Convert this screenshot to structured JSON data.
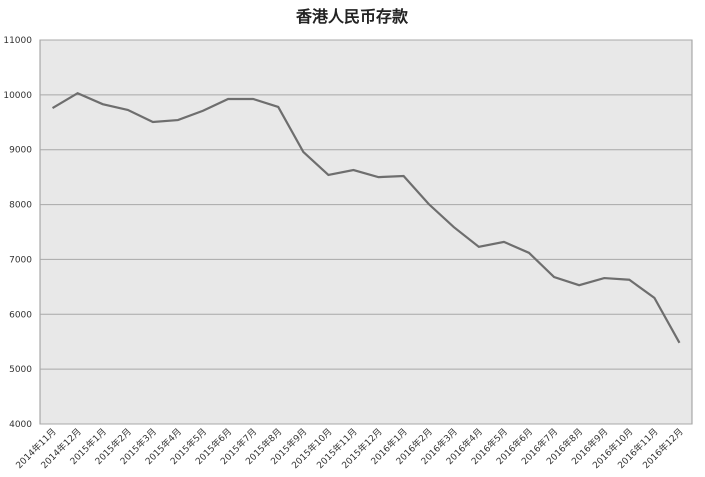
{
  "chart_data": {
    "type": "line",
    "title": "香港人民币存款",
    "categories": [
      "2014年11月",
      "2014年12月",
      "2015年1月",
      "2015年2月",
      "2015年3月",
      "2015年4月",
      "2015年5月",
      "2015年6月",
      "2015年7月",
      "2015年8月",
      "2015年9月",
      "2015年10月",
      "2015年11月",
      "2015年12月",
      "2016年1月",
      "2016年2月",
      "2016年3月",
      "2016年4月",
      "2016年5月",
      "2016年6月",
      "2016年7月",
      "2016年8月",
      "2016年9月",
      "2016年10月",
      "2016年11月",
      "2016年12月"
    ],
    "series": [
      {
        "name": "香港人民币存款",
        "color": "#6e6e6e",
        "values": [
          9760,
          10030,
          9830,
          9725,
          9505,
          9540,
          9710,
          9925,
          9925,
          9780,
          8960,
          8540,
          8630,
          8500,
          8520,
          8010,
          7590,
          7230,
          7320,
          7120,
          6680,
          6530,
          6660,
          6630,
          6300,
          5480
        ]
      }
    ],
    "ylim": [
      4000,
      11000
    ],
    "yticks": [
      4000,
      5000,
      6000,
      7000,
      8000,
      9000,
      10000,
      11000
    ],
    "grid": true
  }
}
